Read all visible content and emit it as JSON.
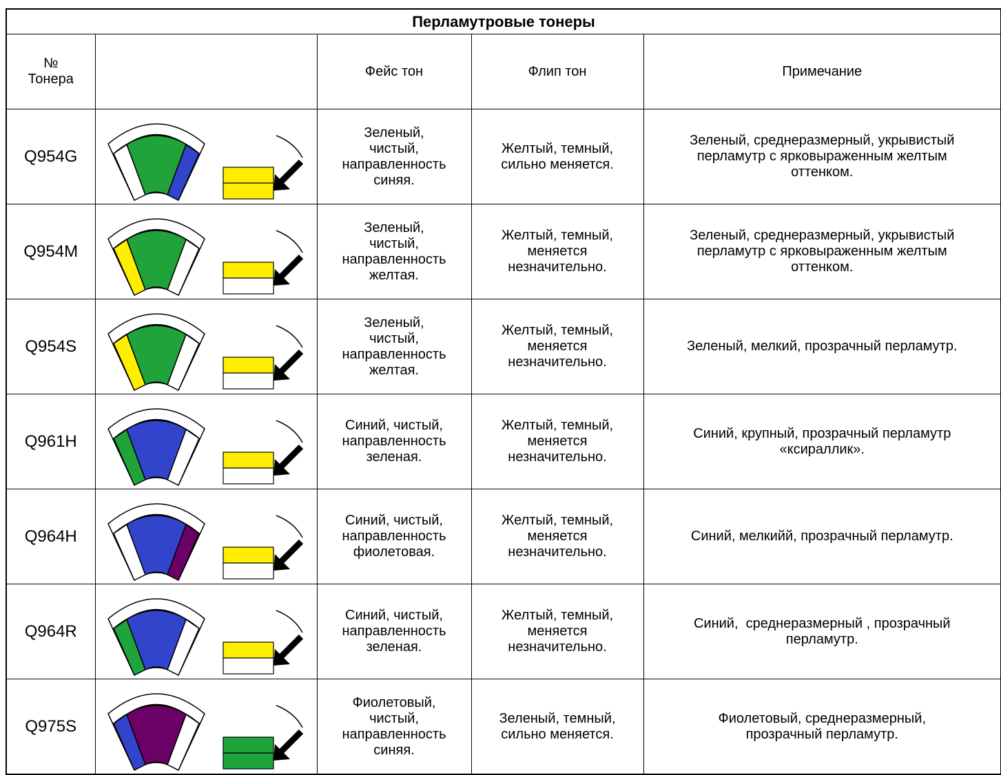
{
  "title": "Перламутровые тонеры",
  "header": {
    "number": [
      "№",
      "Тонера"
    ],
    "face": "Фейс тон",
    "flip": "Флип тон",
    "note": "Примечание"
  },
  "rows": [
    {
      "number": "Q954G",
      "face": [
        "Зеленый,",
        "чистый,",
        "направленность",
        "синяя."
      ],
      "flip": [
        "Желтый, темный,",
        "сильно меняется."
      ],
      "note": [
        "Зеленый, среднеразмерный, укрывистый",
        "перламутр с ярковыраженным желтым",
        "оттенком."
      ],
      "icon": {
        "fan": "#1fa33a",
        "left": "#ffffff",
        "right": "#3344cc",
        "bar_top": "#ffee00",
        "bar_bottom": "#ffee00"
      }
    },
    {
      "number": "Q954M",
      "face": [
        "Зеленый,",
        "чистый,",
        "направленность",
        "желтая."
      ],
      "flip": [
        "Желтый, темный,",
        "меняется",
        "незначительно."
      ],
      "note": [
        "Зеленый, среднеразмерный, укрывистый",
        "перламутр с ярковыраженным желтым",
        "оттенком."
      ],
      "icon": {
        "fan": "#1fa33a",
        "left": "#ffee00",
        "right": "#ffffff",
        "bar_top": "#ffee00",
        "bar_bottom": "#ffffff"
      }
    },
    {
      "number": "Q954S",
      "face": [
        "Зеленый,",
        "чистый,",
        "направленность",
        "желтая."
      ],
      "flip": [
        "Желтый, темный,",
        "меняется",
        "незначительно."
      ],
      "note": [
        "Зеленый, мелкий, прозрачный перламутр."
      ],
      "icon": {
        "fan": "#1fa33a",
        "left": "#ffee00",
        "right": "#ffffff",
        "bar_top": "#ffee00",
        "bar_bottom": "#ffffff"
      }
    },
    {
      "number": "Q961H",
      "face": [
        "Синий, чистый,",
        "направленность",
        "зеленая."
      ],
      "flip": [
        "Желтый, темный,",
        "меняется",
        "незначительно."
      ],
      "note": [
        "Синий, крупный, прозрачный перламутр",
        "«ксираллик»."
      ],
      "icon": {
        "fan": "#3344cc",
        "left": "#1fa33a",
        "right": "#ffffff",
        "bar_top": "#ffee00",
        "bar_bottom": "#ffffff"
      }
    },
    {
      "number": "Q964H",
      "face": [
        "Синий, чистый,",
        "направленность",
        "фиолетовая."
      ],
      "flip": [
        "Желтый, темный,",
        "меняется",
        "незначительно."
      ],
      "note": [
        "Синий, мелкийй, прозрачный перламутр."
      ],
      "icon": {
        "fan": "#3344cc",
        "left": "#ffffff",
        "right": "#6b0066",
        "bar_top": "#ffee00",
        "bar_bottom": "#ffffff"
      }
    },
    {
      "number": "Q964R",
      "face": [
        "Синий, чистый,",
        "направленность",
        "зеленая."
      ],
      "flip": [
        "Желтый, темный,",
        "меняется",
        "незначительно."
      ],
      "note": [
        "Синий,  среднеразмерный , прозрачный",
        "перламутр."
      ],
      "icon": {
        "fan": "#3344cc",
        "left": "#1fa33a",
        "right": "#ffffff",
        "bar_top": "#ffee00",
        "bar_bottom": "#ffffff"
      }
    },
    {
      "number": "Q975S",
      "face": [
        "Фиолетовый,",
        "чистый,",
        "направленность",
        "синяя."
      ],
      "flip": [
        "Зеленый, темный,",
        "сильно меняется."
      ],
      "note": [
        "Фиолетовый, среднеразмерный,",
        "прозрачный перламутр."
      ],
      "icon": {
        "fan": "#6b0066",
        "left": "#3344cc",
        "right": "#ffffff",
        "bar_top": "#1fa33a",
        "bar_bottom": "#1fa33a"
      }
    }
  ]
}
